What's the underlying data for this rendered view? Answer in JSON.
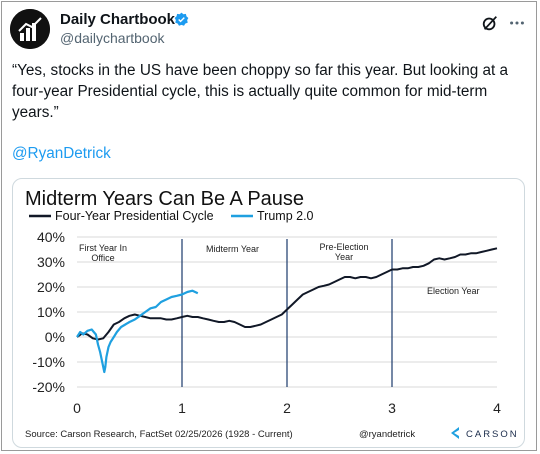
{
  "account": {
    "display_name": "Daily Chartbook",
    "handle": "@dailychartbook",
    "avatar_icon": "bar-chart-avatar-icon"
  },
  "header_actions": {
    "grok_icon": "grok-icon",
    "more_icon": "more-dots-icon"
  },
  "tweet": {
    "text": "“Yes, stocks in the US have been choppy so far this year. But looking at a four-year Presidential cycle, this is actually quite common for mid-term years.”",
    "mention": "@RyanDetrick"
  },
  "colors": {
    "link": "#1d9bf0",
    "cycle_series": "#111827",
    "trump_series": "#1fa0e0"
  },
  "chart_data": {
    "type": "line",
    "title": "Midterm Years Can Be A Pause",
    "xlim": [
      0,
      4
    ],
    "ylim": [
      -20,
      40
    ],
    "x_ticks": [
      "0",
      "1",
      "2",
      "3",
      "4"
    ],
    "y_ticks": [
      "40%",
      "30%",
      "20%",
      "10%",
      "0%",
      "-10%",
      "-20%"
    ],
    "grid": "horizontal",
    "legend_position": "top-left",
    "year_dividers": [
      1,
      2,
      3
    ],
    "annotations": [
      "First Year In Office",
      "Midterm Year",
      "Pre-Election Year",
      "Election Year"
    ],
    "series": [
      {
        "name": "Four-Year Presidential Cycle",
        "x": [
          0,
          0.05,
          0.1,
          0.15,
          0.2,
          0.25,
          0.3,
          0.35,
          0.4,
          0.45,
          0.5,
          0.55,
          0.6,
          0.65,
          0.7,
          0.75,
          0.8,
          0.85,
          0.9,
          0.95,
          1.0,
          1.05,
          1.1,
          1.15,
          1.2,
          1.25,
          1.3,
          1.35,
          1.4,
          1.45,
          1.5,
          1.55,
          1.6,
          1.65,
          1.7,
          1.75,
          1.8,
          1.85,
          1.9,
          1.95,
          2.0,
          2.05,
          2.1,
          2.15,
          2.2,
          2.25,
          2.3,
          2.35,
          2.4,
          2.45,
          2.5,
          2.55,
          2.6,
          2.65,
          2.7,
          2.75,
          2.8,
          2.85,
          2.9,
          2.95,
          3.0,
          3.05,
          3.1,
          3.15,
          3.2,
          3.25,
          3.3,
          3.35,
          3.4,
          3.45,
          3.5,
          3.55,
          3.6,
          3.65,
          3.7,
          3.75,
          3.8,
          3.85,
          3.9,
          3.95,
          4.0
        ],
        "values": [
          0,
          1.5,
          1,
          -0.5,
          -1,
          -0.5,
          2,
          5,
          6,
          7.5,
          8.5,
          9,
          8.5,
          8,
          7.5,
          7.5,
          7.5,
          7,
          7,
          7.5,
          8,
          8.5,
          8,
          8,
          7.5,
          7,
          6.5,
          6,
          6,
          6.5,
          6,
          5,
          4,
          4,
          4.5,
          5,
          6,
          7,
          8,
          9,
          11,
          13,
          15,
          17,
          18,
          19,
          20,
          20.5,
          21,
          22,
          23,
          24,
          24,
          23.5,
          24,
          24,
          23.5,
          24,
          25,
          26,
          27,
          27,
          27.5,
          27.5,
          28,
          28,
          28.5,
          29.5,
          31,
          31.5,
          31,
          31.5,
          32,
          33,
          33,
          33.5,
          33.5,
          34,
          34.5,
          35,
          35.5
        ]
      },
      {
        "name": "Trump 2.0",
        "x": [
          0,
          0.03,
          0.06,
          0.1,
          0.14,
          0.18,
          0.2,
          0.22,
          0.24,
          0.26,
          0.27,
          0.28,
          0.3,
          0.32,
          0.35,
          0.38,
          0.42,
          0.46,
          0.5,
          0.55,
          0.6,
          0.65,
          0.7,
          0.75,
          0.8,
          0.85,
          0.9,
          0.95,
          1.0,
          1.05,
          1.1,
          1.15
        ],
        "values": [
          0,
          2,
          1,
          2.5,
          3,
          1,
          -3,
          -6,
          -10,
          -14,
          -12,
          -8,
          -4,
          -2,
          0,
          2,
          4,
          5,
          6,
          7,
          8.5,
          10,
          11.5,
          12,
          14,
          15,
          16,
          16.5,
          17,
          18,
          18.5,
          17.5
        ]
      }
    ],
    "source": "Source: Carson Research, FactSet 02/25/2026   (1928 - Current)",
    "credit": "@ryandetrick",
    "logo_text": "CARSON"
  }
}
